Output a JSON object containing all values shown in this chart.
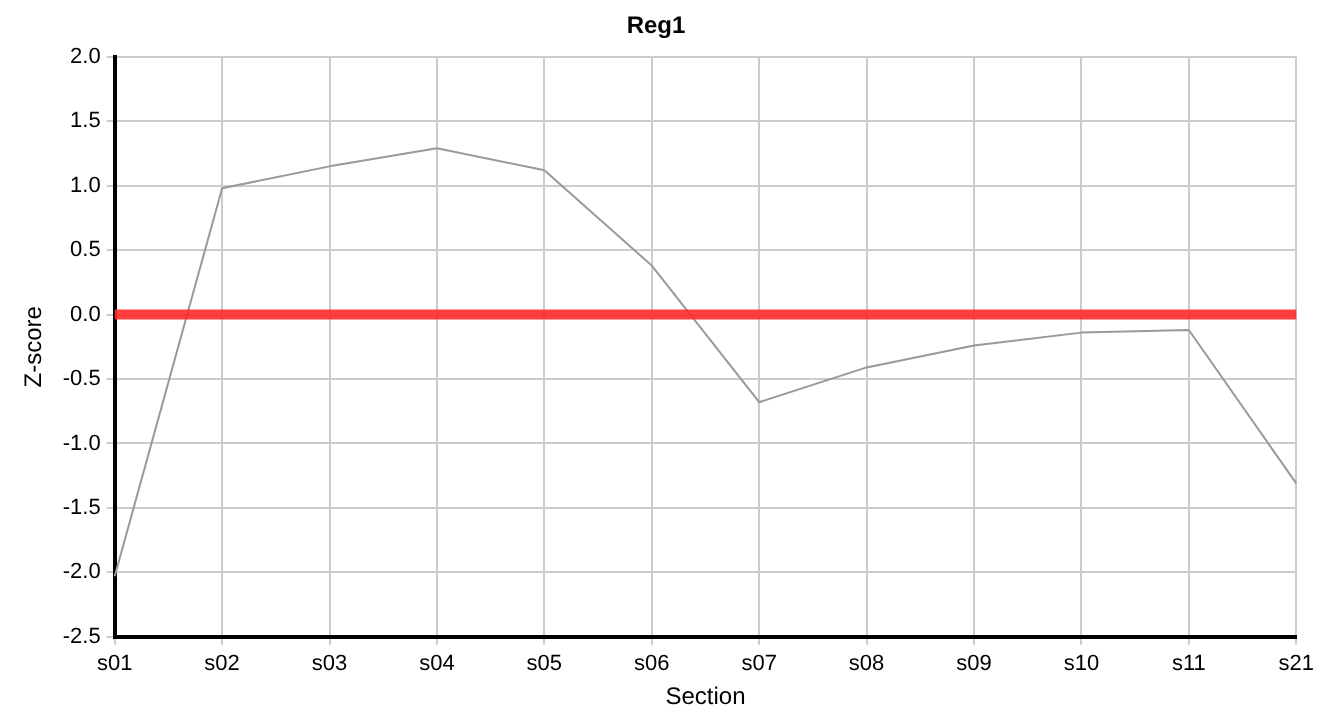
{
  "chart_data": {
    "type": "line",
    "title": "Reg1",
    "xlabel": "Section",
    "ylabel": "Z-score",
    "categories": [
      "s01",
      "s02",
      "s03",
      "s04",
      "s05",
      "s06",
      "s07",
      "s08",
      "s09",
      "s10",
      "s11",
      "s21"
    ],
    "series": [
      {
        "color": "#999999",
        "values": [
          -2.03,
          0.98,
          1.15,
          1.29,
          1.12,
          0.38,
          -0.68,
          -0.41,
          -0.24,
          -0.14,
          -0.12,
          -1.31
        ]
      }
    ],
    "ylim": [
      -2.5,
      2.0
    ],
    "yticks": [
      {
        "value": -2.5,
        "label": "-2.5"
      },
      {
        "value": -2,
        "label": "-2.0"
      },
      {
        "value": -1.5,
        "label": "-1.5"
      },
      {
        "value": -1,
        "label": "-1.0"
      },
      {
        "value": -0.5,
        "label": "-0.5"
      },
      {
        "value": 0,
        "label": "0.0"
      },
      {
        "value": 0.5,
        "label": "0.5"
      },
      {
        "value": 1,
        "label": "1.0"
      },
      {
        "value": 1.5,
        "label": "1.5"
      },
      {
        "value": 2,
        "label": "2.0"
      }
    ],
    "ref_lines": [
      {
        "axis": "y",
        "value": 0,
        "color": "#ff2a2a"
      }
    ],
    "grid": true,
    "legend": false,
    "marker": "none",
    "line_style": "solid"
  }
}
